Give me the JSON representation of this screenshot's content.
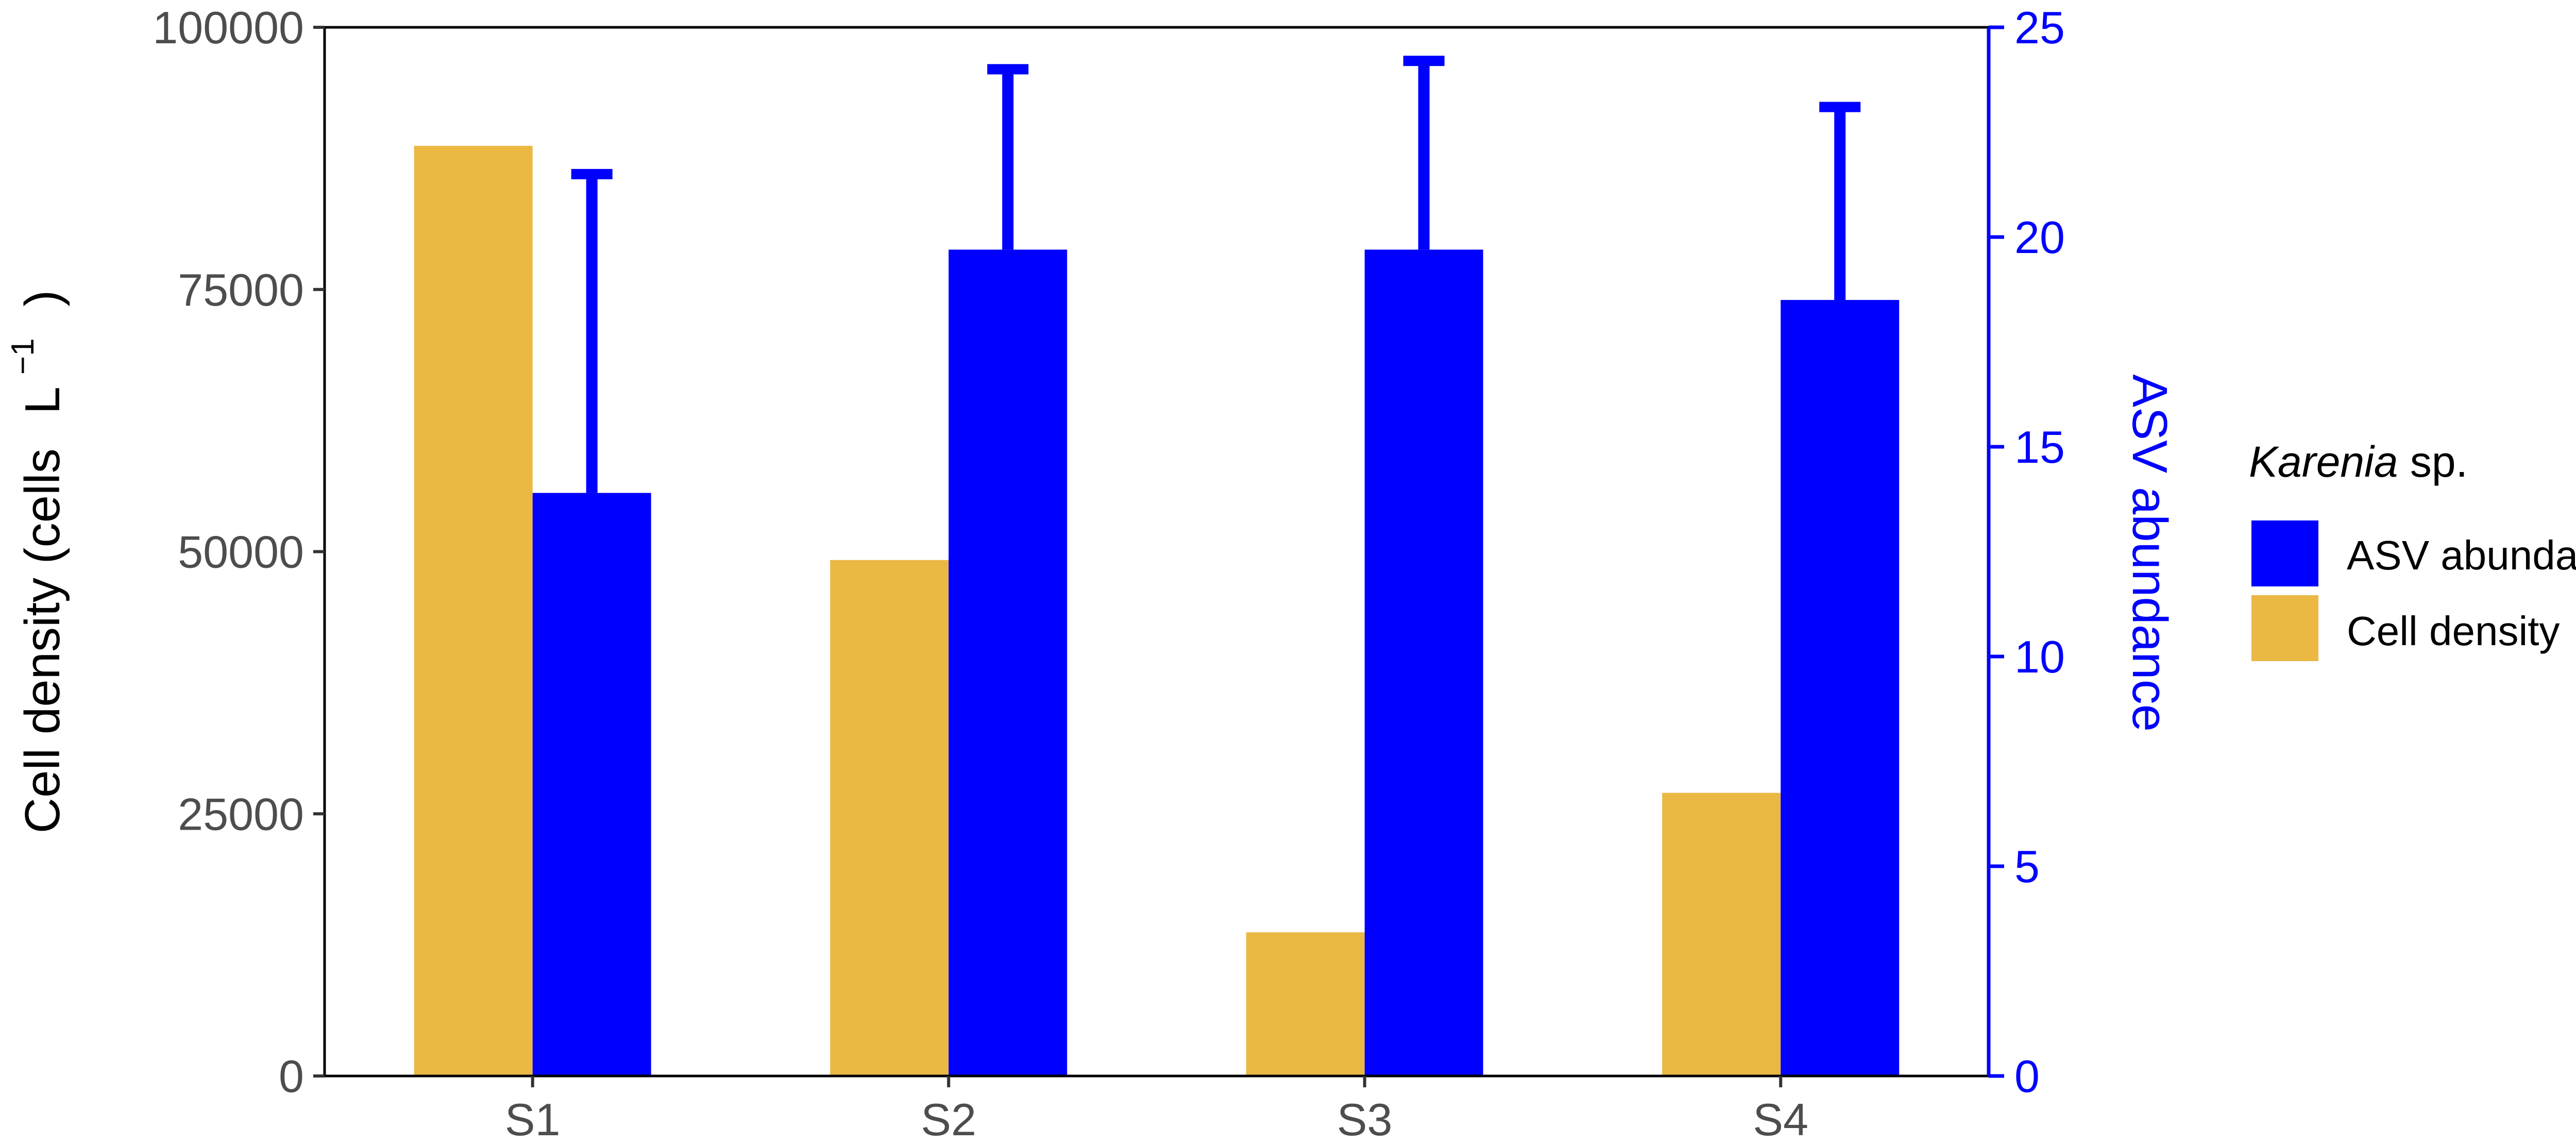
{
  "chart_data": {
    "type": "bar",
    "categories": [
      "S1",
      "S2",
      "S3",
      "S4"
    ],
    "series": [
      {
        "name": "Cell density",
        "axis": "left",
        "color": "#ebb844",
        "values": [
          88700,
          49200,
          13700,
          27000
        ]
      },
      {
        "name": "ASV abundance",
        "axis": "right",
        "color": "#0000ff",
        "values": [
          13.9,
          19.7,
          19.7,
          18.5
        ],
        "error_upper": [
          21.5,
          24.0,
          24.2,
          23.1
        ]
      }
    ],
    "y_left": {
      "label_main": "Cell density (cells",
      "label_unit": "L",
      "label_exp": "−1",
      "label_close": ")",
      "ylim": [
        0,
        100000
      ],
      "ticks": [
        0,
        25000,
        50000,
        75000,
        100000
      ],
      "tick_labels": [
        "0",
        "25000",
        "50000",
        "75000",
        "100000"
      ]
    },
    "y_right": {
      "label": "ASV abundance",
      "ylim": [
        0,
        25
      ],
      "ticks": [
        0,
        5,
        10,
        15,
        20,
        25
      ],
      "tick_labels": [
        "0",
        "5",
        "10",
        "15",
        "20",
        "25"
      ],
      "color": "#0000ff"
    },
    "legend": {
      "placement": "right",
      "title_italic": "Karenia",
      "title_rest": " sp.",
      "entries": [
        {
          "label": "ASV abundance",
          "color": "#0000ff"
        },
        {
          "label": "Cell density",
          "color": "#ebb844"
        }
      ]
    },
    "grid": false
  }
}
